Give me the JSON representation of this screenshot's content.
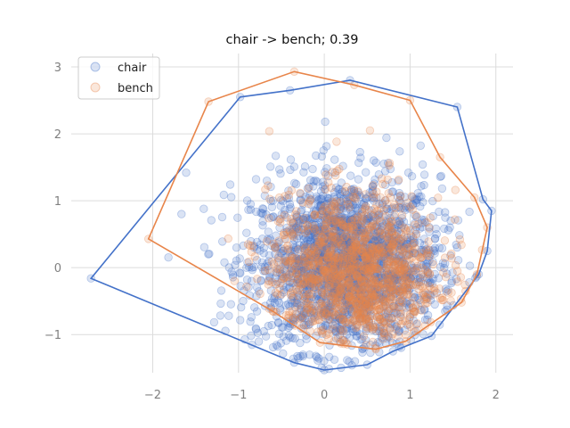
{
  "chart_data": {
    "type": "scatter",
    "title": "chair -> bench; 0.39",
    "xlabel": "",
    "ylabel": "",
    "xlim": [
      -2.95,
      2.2
    ],
    "ylim": [
      -1.57,
      3.2
    ],
    "xticks": [
      -2,
      -1,
      0,
      1,
      2
    ],
    "yticks": [
      -1,
      0,
      1,
      2,
      3
    ],
    "xtick_labels": [
      "−2",
      "−1",
      "0",
      "1",
      "2"
    ],
    "ytick_labels": [
      "−1",
      "0",
      "1",
      "2",
      "3"
    ],
    "grid": true,
    "legend_position": "top-left",
    "series": [
      {
        "name": "chair",
        "color": "#4472c9",
        "marker": "circle",
        "alpha": 0.2,
        "point_count": 2000,
        "approx_center": [
          0.25,
          0.05
        ],
        "approx_spread": [
          0.55,
          0.65
        ],
        "hull": [
          [
            -2.72,
            -0.16
          ],
          [
            -0.35,
            -1.42
          ],
          [
            0.0,
            -1.53
          ],
          [
            0.5,
            -1.45
          ],
          [
            0.8,
            -1.25
          ],
          [
            1.25,
            -1.02
          ],
          [
            1.8,
            -0.1
          ],
          [
            1.9,
            0.25
          ],
          [
            1.95,
            0.85
          ],
          [
            1.85,
            1.02
          ],
          [
            1.55,
            2.4
          ],
          [
            0.3,
            2.8
          ],
          [
            -0.4,
            2.65
          ],
          [
            -0.98,
            2.55
          ]
        ]
      },
      {
        "name": "bench",
        "color": "#e8854a",
        "marker": "circle",
        "alpha": 0.2,
        "point_count": 1200,
        "approx_center": [
          0.35,
          -0.1
        ],
        "approx_spread": [
          0.5,
          0.6
        ],
        "hull": [
          [
            -2.05,
            0.43
          ],
          [
            -0.6,
            -0.65
          ],
          [
            -0.05,
            -1.12
          ],
          [
            0.6,
            -1.22
          ],
          [
            0.95,
            -1.1
          ],
          [
            1.6,
            -0.52
          ],
          [
            1.78,
            -0.1
          ],
          [
            1.9,
            0.6
          ],
          [
            1.75,
            1.05
          ],
          [
            1.35,
            1.65
          ],
          [
            1.0,
            2.5
          ],
          [
            0.35,
            2.73
          ],
          [
            -0.35,
            2.93
          ],
          [
            -1.35,
            2.48
          ]
        ]
      }
    ]
  }
}
